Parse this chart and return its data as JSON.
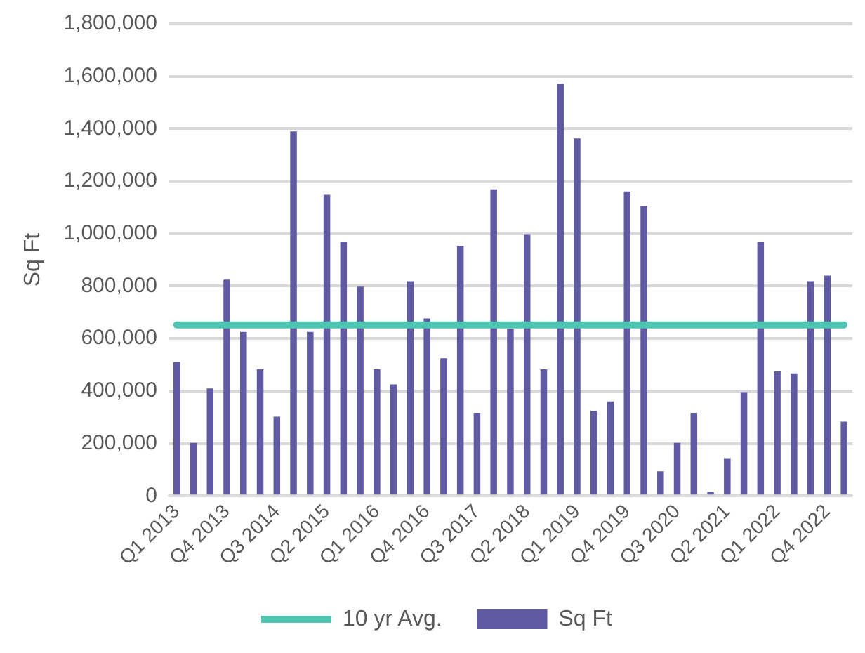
{
  "chart_data": {
    "type": "bar",
    "ylabel": "Sq Ft",
    "categories": [
      "Q1 2013",
      null,
      null,
      "Q4 2013",
      null,
      null,
      "Q3 2014",
      null,
      null,
      "Q2 2015",
      null,
      null,
      "Q1 2016",
      null,
      null,
      "Q4 2016",
      null,
      null,
      "Q3 2017",
      null,
      null,
      "Q2 2018",
      null,
      null,
      "Q1 2019",
      null,
      null,
      "Q4 2019",
      null,
      null,
      "Q3 2020",
      null,
      null,
      "Q2 2021",
      null,
      null,
      "Q1 2022",
      null,
      null,
      "Q4 2022",
      null
    ],
    "series": [
      {
        "name": "Sq Ft",
        "color": "#5f5aa2",
        "values": [
          510000,
          202000,
          410000,
          825000,
          625000,
          483000,
          302000,
          1390000,
          625000,
          1148000,
          969000,
          798000,
          483000,
          425000,
          819000,
          677000,
          525000,
          954000,
          317000,
          1169000,
          637000,
          998000,
          483000,
          1571000,
          1363000,
          325000,
          360000,
          1161000,
          1106000,
          94000,
          202000,
          317000,
          15000,
          144000,
          396000,
          969000,
          475000,
          467000,
          819000,
          840000,
          283000
        ]
      },
      {
        "name": "10 yr Avg.",
        "type": "line",
        "color": "#4fc4b0",
        "values": [
          652000,
          652000,
          652000,
          652000,
          652000,
          652000,
          652000,
          652000,
          652000,
          652000,
          652000,
          652000,
          652000,
          652000,
          652000,
          652000,
          652000,
          652000,
          652000,
          652000,
          652000,
          652000,
          652000,
          652000,
          652000,
          652000,
          652000,
          652000,
          652000,
          652000,
          652000,
          652000,
          652000,
          652000,
          652000,
          652000,
          652000,
          652000,
          652000,
          652000,
          652000
        ]
      }
    ],
    "ylim": [
      0,
      1800000
    ],
    "yticks": [
      {
        "value": 0,
        "label": "0"
      },
      {
        "value": 200000,
        "label": "200,000"
      },
      {
        "value": 400000,
        "label": "400,000"
      },
      {
        "value": 600000,
        "label": "600,000"
      },
      {
        "value": 800000,
        "label": "800,000"
      },
      {
        "value": 1000000,
        "label": "1,000,000"
      },
      {
        "value": 1200000,
        "label": "1,200,000"
      },
      {
        "value": 1400000,
        "label": "1,400,000"
      },
      {
        "value": 1600000,
        "label": "1,600,000"
      },
      {
        "value": 1800000,
        "label": "1,800,000"
      }
    ],
    "grid": "y",
    "legend": "bottom",
    "marker": "none",
    "line_style": "solid"
  }
}
